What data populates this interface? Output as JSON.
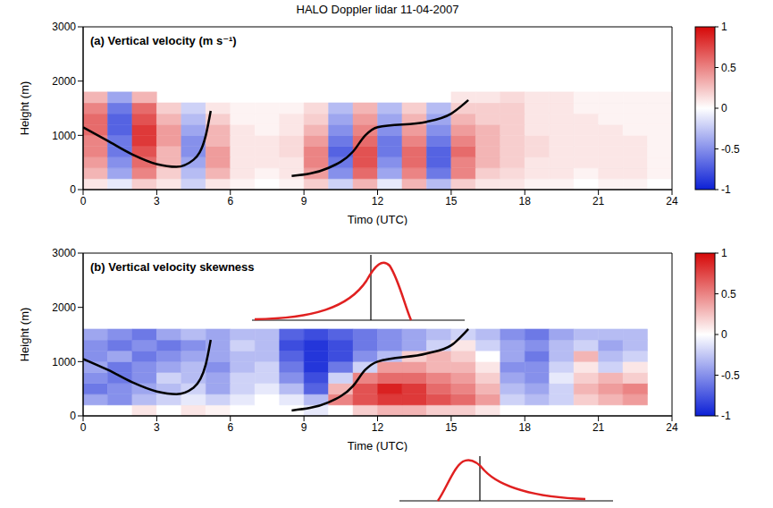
{
  "title": "HALO Doppler lidar 11-04-2007",
  "chart_data": [
    {
      "type": "heatmap",
      "label": "(a)",
      "title": "Vertical velocity (m s⁻¹)",
      "x_label": "Timo (UTC)",
      "y_label": "Height (m)",
      "xlim": [
        0,
        24
      ],
      "xticks": [
        0,
        3,
        6,
        9,
        12,
        15,
        18,
        21,
        24
      ],
      "ylim": [
        0,
        3000
      ],
      "yticks": [
        0,
        1000,
        2000,
        3000
      ],
      "x_edges": [
        0,
        1,
        2,
        3,
        4,
        5,
        6,
        7,
        8,
        9,
        10,
        11,
        12,
        13,
        14,
        15,
        16,
        17,
        18,
        19,
        20,
        21,
        22,
        23,
        24
      ],
      "y_edges": [
        0,
        200,
        400,
        600,
        800,
        1000,
        1200,
        1400,
        1600,
        1800
      ],
      "cells": [
        [
          0.1,
          -0.1,
          0.2,
          0.1,
          -0.2,
          0.1,
          0.05,
          0,
          0.05,
          0.2,
          -0.2,
          0.3,
          -0.1,
          0.3,
          -0.3,
          0.2,
          0.1,
          0.1,
          0.05,
          0.05,
          0,
          0.05,
          0.05,
          0
        ],
        [
          0.3,
          -0.4,
          0.5,
          0.2,
          -0.3,
          0.3,
          0.1,
          0.05,
          0.1,
          0.4,
          -0.5,
          0.6,
          -0.4,
          0.5,
          -0.6,
          0.5,
          0.2,
          0.15,
          0.1,
          0.1,
          0.05,
          0.1,
          0.1,
          0.05
        ],
        [
          0.4,
          -0.5,
          0.6,
          0.3,
          -0.4,
          0.4,
          0.1,
          0.1,
          0.1,
          0.5,
          -0.6,
          0.7,
          -0.5,
          0.6,
          -0.7,
          0.5,
          0.3,
          0.2,
          0.1,
          0.1,
          0.1,
          0.1,
          0.1,
          0.05
        ],
        [
          0.5,
          -0.6,
          0.7,
          0.3,
          -0.5,
          0.4,
          0.1,
          0.1,
          0.15,
          0.5,
          -0.7,
          0.7,
          -0.6,
          0.6,
          -0.7,
          0.6,
          0.3,
          0.2,
          0.15,
          0.1,
          0.1,
          0.1,
          0.1,
          0.05
        ],
        [
          0.5,
          -0.6,
          0.8,
          0.4,
          -0.5,
          0.3,
          0.1,
          0.1,
          0.15,
          0.4,
          -0.6,
          0.6,
          -0.6,
          0.5,
          -0.6,
          0.5,
          0.3,
          0.2,
          0.15,
          0.1,
          0.1,
          0.1,
          0.1,
          0.05
        ],
        [
          0.6,
          -0.7,
          0.8,
          0.4,
          -0.4,
          0.3,
          0.1,
          0.05,
          0.1,
          0.3,
          -0.5,
          0.5,
          -0.5,
          0.4,
          -0.5,
          0.4,
          0.3,
          0.2,
          0.1,
          0.1,
          0.1,
          0.1,
          0.05,
          0.05
        ],
        [
          0.6,
          -0.7,
          0.7,
          0.3,
          -0.3,
          0.2,
          0.05,
          0.05,
          0.1,
          0.2,
          -0.4,
          0.4,
          -0.4,
          0.3,
          -0.4,
          0.3,
          0.2,
          0.2,
          0.1,
          0.1,
          0.1,
          0.05,
          0.05,
          0.05
        ],
        [
          0.5,
          -0.6,
          0.6,
          0.2,
          -0.2,
          0.1,
          0.05,
          0.05,
          0.05,
          0.15,
          -0.3,
          0.3,
          -0.3,
          0.2,
          -0.3,
          0.2,
          0.2,
          0.2,
          0.1,
          0.1,
          0.05,
          0.05,
          0.05,
          0.05
        ],
        [
          0.3,
          -0.4,
          0.3,
          null,
          null,
          null,
          null,
          null,
          null,
          null,
          null,
          null,
          null,
          null,
          null,
          0.1,
          0.1,
          0.15,
          0.1,
          0.1,
          0.05,
          0.05,
          0.05,
          0.05
        ]
      ],
      "colorbar_range": [
        -1,
        1
      ],
      "colorbar_ticks": [
        -1,
        -0.5,
        0,
        0.5,
        1
      ],
      "curves": [
        {
          "x": [
            0,
            1,
            2,
            3,
            3.8,
            4.5,
            5,
            5.2
          ],
          "y": [
            1150,
            900,
            650,
            470,
            420,
            550,
            1000,
            1450
          ],
          "color": "#000000"
        },
        {
          "x": [
            8.5,
            10,
            11,
            11.5,
            12,
            14,
            15,
            15.7
          ],
          "y": [
            250,
            400,
            700,
            1000,
            1150,
            1250,
            1400,
            1650
          ],
          "color": "#000000"
        }
      ]
    },
    {
      "type": "heatmap",
      "label": "(b)",
      "title": "Vertical velocity skewness",
      "x_label": "Time (UTC)",
      "y_label": "Height (m)",
      "xlim": [
        0,
        24
      ],
      "xticks": [
        0,
        3,
        6,
        9,
        12,
        15,
        18,
        21,
        24
      ],
      "ylim": [
        0,
        3000
      ],
      "yticks": [
        0,
        1000,
        2000,
        3000
      ],
      "x_edges": [
        0,
        1,
        2,
        3,
        4,
        5,
        6,
        7,
        8,
        9,
        10,
        11,
        12,
        13,
        14,
        15,
        16,
        17,
        18,
        19,
        20,
        21,
        22,
        23,
        24
      ],
      "y_edges": [
        0,
        200,
        400,
        600,
        800,
        1000,
        1200,
        1400,
        1600,
        1800
      ],
      "cells": [
        [
          null,
          null,
          0.1,
          0,
          0.1,
          0.05,
          0,
          0,
          0,
          -0.1,
          0,
          0.2,
          0.3,
          0.3,
          0.2,
          0.2,
          0.1,
          0,
          0,
          0,
          0,
          0,
          0,
          null
        ],
        [
          -0.4,
          -0.5,
          -0.3,
          -0.2,
          -0.1,
          -0.2,
          -0.1,
          0,
          -0.1,
          -0.3,
          0.5,
          0.7,
          0.8,
          0.8,
          0.7,
          0.6,
          0.4,
          -0.2,
          -0.3,
          -0.2,
          0.2,
          0.3,
          0.4,
          null
        ],
        [
          -0.6,
          -0.5,
          -0.4,
          -0.3,
          -0.2,
          -0.4,
          -0.2,
          -0.1,
          -0.3,
          -0.7,
          0.3,
          0.7,
          0.9,
          0.8,
          0.6,
          0.5,
          0.3,
          -0.3,
          -0.4,
          -0.2,
          0.3,
          0.4,
          0.5,
          null
        ],
        [
          -0.5,
          -0.6,
          -0.5,
          -0.2,
          -0.3,
          -0.4,
          -0.2,
          -0.2,
          -0.5,
          -0.8,
          -0.2,
          0.5,
          0.6,
          0.6,
          0.5,
          0.4,
          0.2,
          -0.4,
          -0.5,
          -0.1,
          0.2,
          0.3,
          0.2,
          null
        ],
        [
          -0.4,
          -0.6,
          -0.5,
          -0.4,
          -0.3,
          -0.5,
          -0.3,
          -0.2,
          -0.6,
          -0.9,
          -0.6,
          -0.2,
          0.4,
          0.4,
          0.3,
          0.3,
          0.1,
          -0.5,
          -0.5,
          -0.2,
          0.1,
          -0.2,
          0.1,
          null
        ],
        [
          -0.5,
          -0.4,
          -0.6,
          -0.5,
          -0.4,
          -0.4,
          -0.3,
          -0.3,
          -0.7,
          -0.9,
          -0.8,
          -0.5,
          -0.3,
          0.2,
          0.3,
          0.2,
          0,
          -0.4,
          -0.6,
          -0.3,
          0.3,
          -0.3,
          -0.2,
          null
        ],
        [
          -0.5,
          -0.6,
          -0.5,
          -0.6,
          -0.5,
          -0.4,
          -0.2,
          -0.3,
          -0.8,
          -0.9,
          -0.8,
          -0.6,
          -0.5,
          -0.4,
          -0.2,
          0.1,
          -0.2,
          -0.4,
          -0.5,
          -0.3,
          -0.2,
          -0.4,
          -0.3,
          null
        ],
        [
          -0.4,
          -0.5,
          -0.6,
          -0.4,
          -0.3,
          -0.4,
          -0.3,
          -0.3,
          -0.7,
          -0.8,
          -0.7,
          -0.6,
          -0.5,
          -0.4,
          -0.3,
          -0.2,
          -0.3,
          -0.5,
          -0.6,
          -0.4,
          -0.3,
          -0.3,
          -0.3,
          null
        ],
        [
          null,
          null,
          null,
          null,
          null,
          null,
          null,
          null,
          null,
          null,
          null,
          null,
          null,
          null,
          null,
          null,
          null,
          null,
          null,
          null,
          null,
          null,
          null,
          null
        ]
      ],
      "colorbar_range": [
        -1,
        1
      ],
      "colorbar_ticks": [
        -1,
        -0.5,
        0,
        0.5,
        1
      ],
      "curves": [
        {
          "x": [
            0,
            1,
            2,
            3,
            3.8,
            4.5,
            5,
            5.2
          ],
          "y": [
            1050,
            850,
            620,
            450,
            400,
            520,
            950,
            1400
          ],
          "color": "#000000"
        },
        {
          "x": [
            8.5,
            10,
            11,
            11.5,
            12,
            14,
            15,
            15.7
          ],
          "y": [
            100,
            250,
            550,
            850,
            1000,
            1150,
            1300,
            1600
          ],
          "color": "#000000"
        }
      ]
    }
  ]
}
